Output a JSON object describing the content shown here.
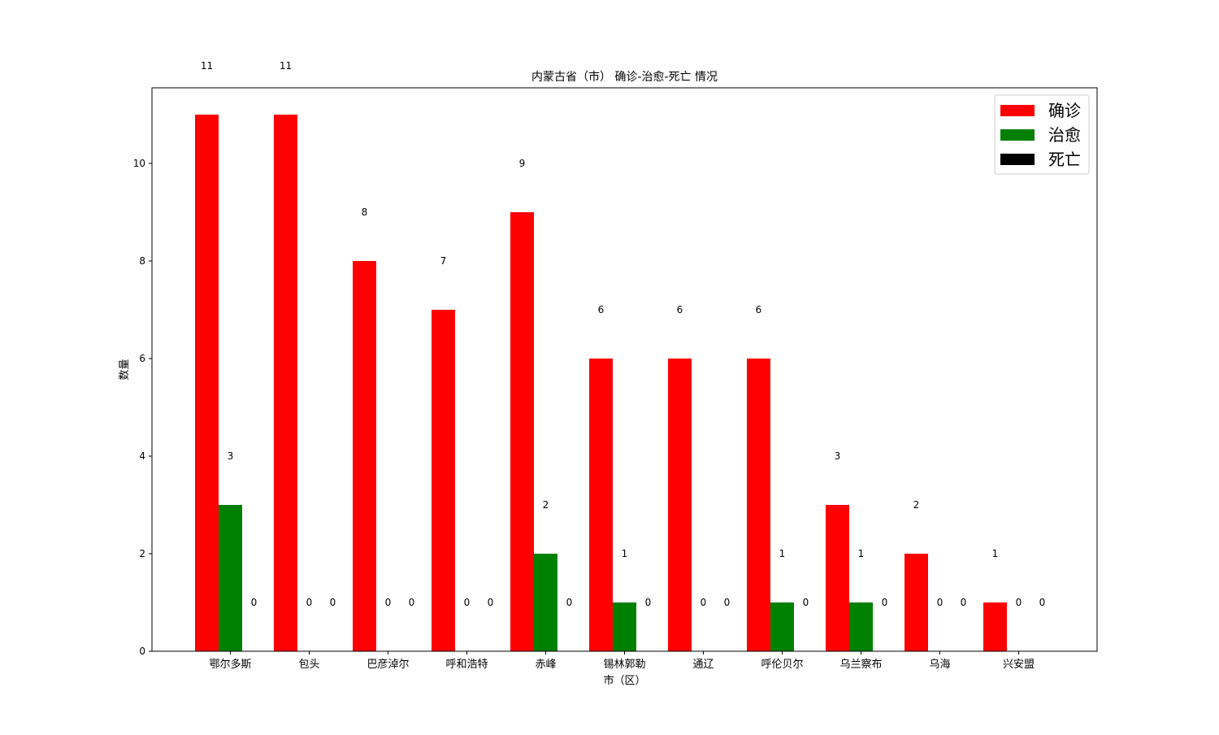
{
  "chart_data": {
    "type": "bar",
    "title": "内蒙古省（市） 确诊-治愈-死亡 情况",
    "xlabel": "市（区）",
    "ylabel": "数量",
    "categories": [
      "鄂尔多斯",
      "包头",
      "巴彦淖尔",
      "呼和浩特",
      "赤峰",
      "锡林郭勒",
      "通辽",
      "呼伦贝尔",
      "乌兰察布",
      "乌海",
      "兴安盟"
    ],
    "series": [
      {
        "name": "确诊",
        "color": "#ff0000",
        "values": [
          11,
          11,
          8,
          7,
          9,
          6,
          6,
          6,
          3,
          2,
          1
        ]
      },
      {
        "name": "治愈",
        "color": "#008000",
        "values": [
          3,
          0,
          0,
          0,
          2,
          1,
          0,
          1,
          1,
          0,
          0
        ]
      },
      {
        "name": "死亡",
        "color": "#000000",
        "values": [
          0,
          0,
          0,
          0,
          0,
          0,
          0,
          0,
          0,
          0,
          0
        ]
      }
    ],
    "ylim": [
      0,
      11.55
    ],
    "yticks": [
      0,
      2,
      4,
      6,
      8,
      10
    ],
    "grid": false,
    "legend_position": "top-right"
  }
}
